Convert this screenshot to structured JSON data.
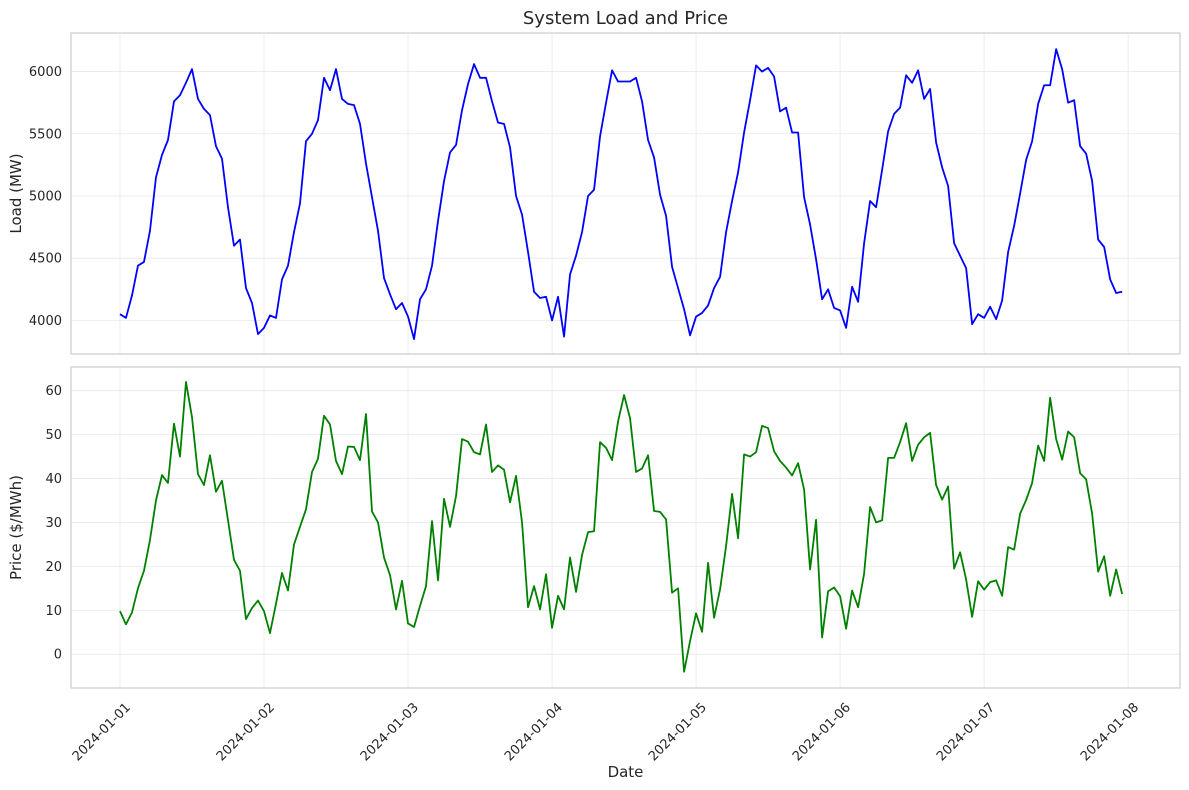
{
  "chart_data": [
    {
      "type": "line",
      "title": "System Load and Price",
      "xlabel": "",
      "ylabel": "Load (MW)",
      "x_tick_labels": [
        "2024-01-01",
        "2024-01-02",
        "2024-01-03",
        "2024-01-04",
        "2024-01-05",
        "2024-01-06",
        "2024-01-07",
        "2024-01-08"
      ],
      "x_range_days": [
        -0.34,
        7.36
      ],
      "ylim": [
        3730,
        6310
      ],
      "yticks": [
        4000,
        4500,
        5000,
        5500,
        6000
      ],
      "grid": true,
      "series": [
        {
          "name": "Load",
          "color": "#0000ff",
          "sample_interval_hours": 1,
          "values": [
            4050,
            4020,
            4200,
            4440,
            4470,
            4720,
            5150,
            5330,
            5450,
            5760,
            5810,
            5910,
            6020,
            5780,
            5700,
            5650,
            5400,
            5300,
            4910,
            4600,
            4650,
            4260,
            4140,
            3890,
            3940,
            4040,
            4020,
            4330,
            4440,
            4710,
            4940,
            5440,
            5500,
            5610,
            5950,
            5850,
            6020,
            5780,
            5740,
            5730,
            5580,
            5260,
            4990,
            4720,
            4340,
            4210,
            4090,
            4140,
            4030,
            3850,
            4170,
            4250,
            4440,
            4800,
            5120,
            5350,
            5410,
            5690,
            5900,
            6060,
            5950,
            5950,
            5760,
            5590,
            5580,
            5390,
            5000,
            4850,
            4550,
            4230,
            4180,
            4190,
            4000,
            4190,
            3870,
            4370,
            4520,
            4710,
            5000,
            5050,
            5480,
            5750,
            6010,
            5920,
            5920,
            5920,
            5950,
            5760,
            5450,
            5310,
            5010,
            4840,
            4430,
            4260,
            4090,
            3880,
            4030,
            4060,
            4120,
            4260,
            4350,
            4710,
            4960,
            5190,
            5510,
            5770,
            6050,
            6000,
            6030,
            5960,
            5680,
            5710,
            5510,
            5510,
            4990,
            4770,
            4490,
            4170,
            4250,
            4100,
            4080,
            3940,
            4270,
            4150,
            4620,
            4960,
            4910,
            5210,
            5520,
            5660,
            5710,
            5970,
            5910,
            6010,
            5780,
            5860,
            5430,
            5230,
            5080,
            4620,
            4520,
            4420,
            3970,
            4050,
            4020,
            4110,
            4010,
            4160,
            4550,
            4760,
            5020,
            5290,
            5440,
            5740,
            5890,
            5890,
            6180,
            6020,
            5750,
            5770,
            5400,
            5340,
            5120,
            4650,
            4590,
            4330,
            4220,
            4230
          ]
        }
      ]
    },
    {
      "type": "line",
      "title": "",
      "xlabel": "Date",
      "ylabel": "Price ($/MWh)",
      "x_tick_labels": [
        "2024-01-01",
        "2024-01-02",
        "2024-01-03",
        "2024-01-04",
        "2024-01-05",
        "2024-01-06",
        "2024-01-07",
        "2024-01-08"
      ],
      "x_range_days": [
        -0.34,
        7.36
      ],
      "ylim": [
        -7.7,
        65.4
      ],
      "yticks": [
        0,
        10,
        20,
        30,
        40,
        50,
        60
      ],
      "grid": true,
      "series": [
        {
          "name": "Price",
          "color": "#008000",
          "sample_interval_hours": 1,
          "values": [
            9.8,
            6.8,
            9.5,
            15,
            19,
            26,
            35,
            40.8,
            39,
            52.5,
            45,
            62,
            54,
            41,
            38.5,
            45.3,
            37,
            39.5,
            30.5,
            21.5,
            19,
            8,
            10.5,
            12.2,
            9.8,
            4.8,
            11.5,
            18.5,
            14.5,
            25,
            29,
            33,
            41.5,
            44.5,
            54.3,
            52.3,
            44,
            41,
            47.3,
            47.2,
            44.2,
            54.7,
            32.5,
            30,
            22,
            18,
            10.2,
            16.7,
            7,
            6.2,
            11,
            15.5,
            30.3,
            16.8,
            35.4,
            29,
            36,
            49,
            48.4,
            46,
            45.5,
            52.3,
            41.5,
            43,
            42,
            34.6,
            40.6,
            30,
            10.7,
            15.5,
            10.2,
            18.2,
            6,
            13.3,
            10.2,
            22,
            14.2,
            22.6,
            27.8,
            28,
            48.3,
            47,
            44.2,
            53,
            59,
            53.7,
            41.5,
            42.3,
            45.3,
            32.6,
            32.4,
            30.7,
            14,
            15,
            -4,
            3,
            9.3,
            5.1,
            20.8,
            8.3,
            14.8,
            24.6,
            36.5,
            26.4,
            45.5,
            45,
            46,
            52,
            51.5,
            46.2,
            44,
            42.5,
            40.7,
            43.5,
            37.5,
            19.3,
            30.6,
            3.8,
            14.3,
            15.2,
            13.2,
            5.8,
            14.5,
            10.7,
            18.3,
            33.5,
            30,
            30.5,
            44.7,
            44.7,
            48.3,
            52.6,
            44,
            47.7,
            49.4,
            50.4,
            38.5,
            35.2,
            38.2,
            19.5,
            23.2,
            17,
            8.5,
            16.6,
            14.7,
            16.4,
            16.8,
            13.3,
            24.4,
            23.8,
            32,
            35.1,
            39,
            47.5,
            44,
            58.4,
            49,
            44.3,
            50.7,
            49.4,
            41.2,
            39.8,
            32,
            18.8,
            22.3,
            13.3,
            19.3,
            13.7
          ]
        }
      ]
    }
  ]
}
